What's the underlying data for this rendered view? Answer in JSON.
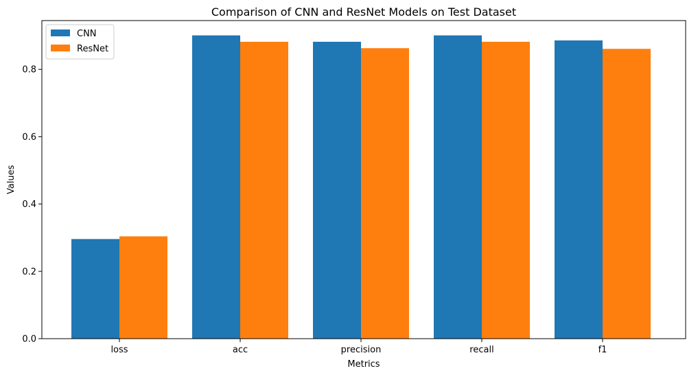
{
  "chart_data": {
    "type": "bar",
    "title": "Comparison of CNN and ResNet Models on Test Dataset",
    "xlabel": "Metrics",
    "ylabel": "Values",
    "categories": [
      "loss",
      "acc",
      "precision",
      "recall",
      "f1"
    ],
    "series": [
      {
        "name": "CNN",
        "color": "#1f77b4",
        "values": [
          0.296,
          0.901,
          0.882,
          0.901,
          0.886
        ]
      },
      {
        "name": "ResNet",
        "color": "#ff7f0e",
        "values": [
          0.304,
          0.882,
          0.863,
          0.882,
          0.861
        ]
      }
    ],
    "ylim": [
      0,
      0.945
    ],
    "yticks": [
      0.0,
      0.2,
      0.4,
      0.6,
      0.8
    ],
    "ytick_labels": [
      "0.0",
      "0.2",
      "0.4",
      "0.6",
      "0.8"
    ],
    "grid": false,
    "legend": "top-left"
  }
}
